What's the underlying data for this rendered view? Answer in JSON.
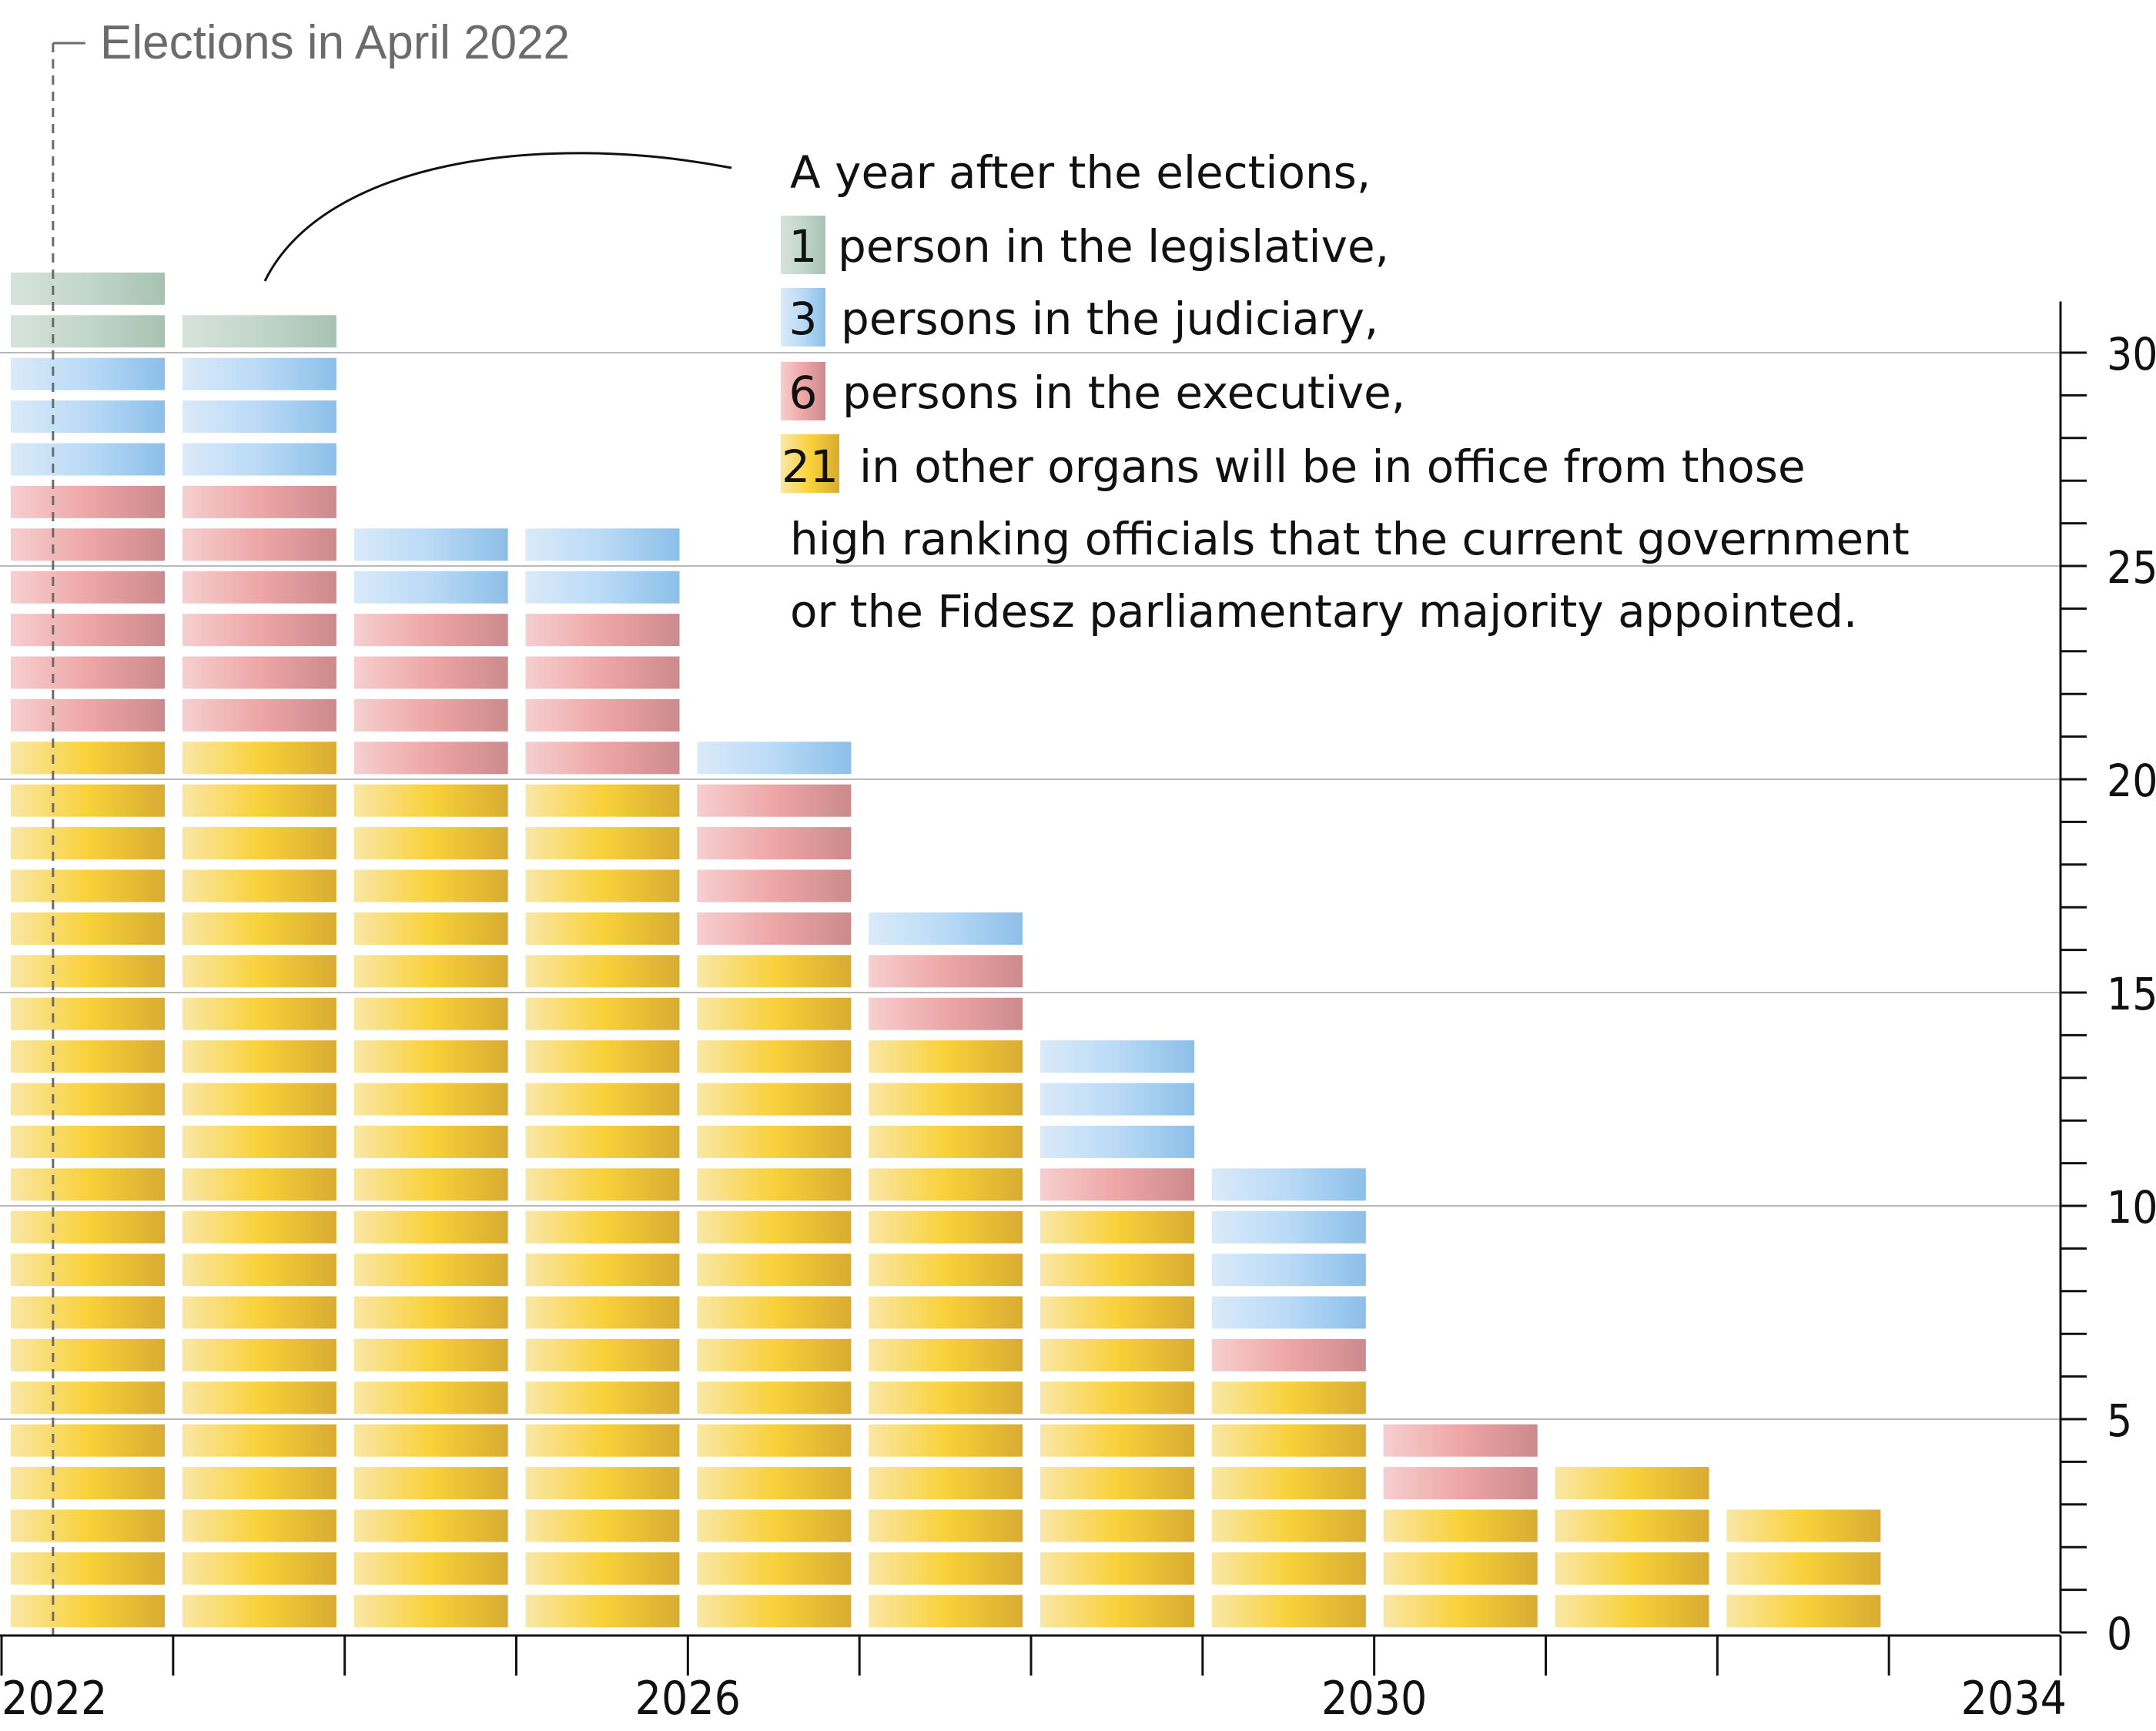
{
  "chart_data": {
    "type": "bar",
    "stacked": true,
    "categories": [
      2022,
      2023,
      2024,
      2025,
      2026,
      2027,
      2028,
      2029,
      2030,
      2031,
      2032
    ],
    "series": [
      {
        "key": "other",
        "color": "#f5c840",
        "values": [
          21,
          21,
          20,
          20,
          16,
          14,
          10,
          6,
          3,
          4,
          3
        ]
      },
      {
        "key": "executive",
        "color": "#eea0a0",
        "values": [
          6,
          6,
          4,
          4,
          4,
          2,
          1,
          1,
          2,
          0,
          0
        ]
      },
      {
        "key": "judiciary",
        "color": "#a3cdf0",
        "values": [
          3,
          3,
          2,
          2,
          1,
          1,
          3,
          4,
          0,
          0,
          0
        ]
      },
      {
        "key": "legislative",
        "color": "#b3cbbf",
        "values": [
          2,
          1,
          0,
          0,
          0,
          0,
          0,
          0,
          0,
          0,
          0
        ]
      }
    ],
    "ylim": [
      0,
      30
    ],
    "yticks": [
      0,
      5,
      10,
      15,
      20,
      25,
      30
    ],
    "ytick_labels": [
      "0",
      "5",
      "10",
      "15",
      "20",
      "25",
      "30"
    ],
    "xticks": [
      "2022",
      "2026",
      "2030",
      "2034"
    ],
    "xlim": [
      2022,
      2034
    ],
    "grid": true,
    "axis_side": "right",
    "marker_line": {
      "x": 2022.3,
      "label": "Elections in April 2022"
    },
    "annotation": {
      "line1": "A year after the elections,",
      "legislative_num": "1",
      "legislative_text": "person in the legislative,",
      "judiciary_num": "3",
      "judiciary_text": "persons in the judiciary,",
      "executive_num": "6",
      "executive_text": "persons in the executive,",
      "other_num": "21",
      "other_text": "in other organs will be in office from those",
      "line6": "high ranking officials that the current government",
      "line7": "or the Fidesz parliamentary majority appointed."
    }
  }
}
